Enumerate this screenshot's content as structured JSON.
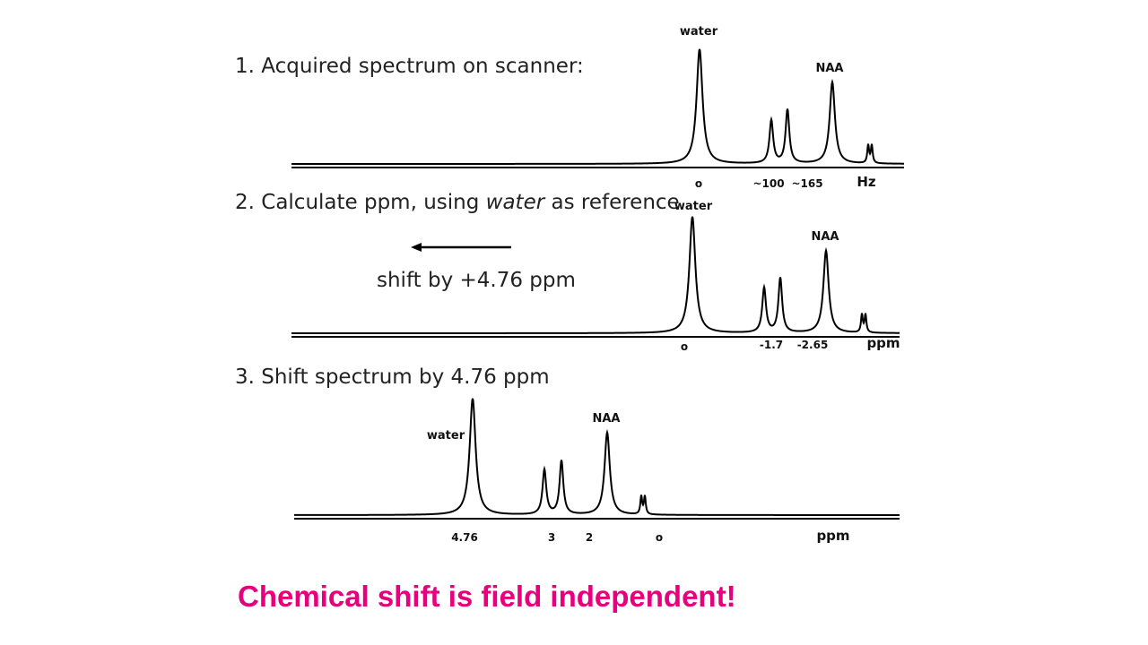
{
  "panels": [
    {
      "title": "1. Acquired spectrum on scanner:",
      "peak_labels": [
        "water",
        "NAA"
      ],
      "ticks": [
        "o",
        "~100",
        "~165"
      ],
      "unit": "Hz"
    },
    {
      "title_parts": [
        "2. Calculate ppm, using ",
        "water",
        " as reference"
      ],
      "peak_labels": [
        "water",
        "NAA"
      ],
      "ticks": [
        "o",
        "-1.7",
        "-2.65"
      ],
      "unit": "ppm",
      "arrow_text": "shift by +4.76 ppm"
    },
    {
      "title": "3. Shift spectrum by 4.76 ppm",
      "peak_labels": [
        "water",
        "NAA"
      ],
      "ticks": [
        "4.76",
        "3",
        "2",
        "o"
      ],
      "unit": "ppm"
    }
  ],
  "footer": "Chemical shift is field independent!"
}
